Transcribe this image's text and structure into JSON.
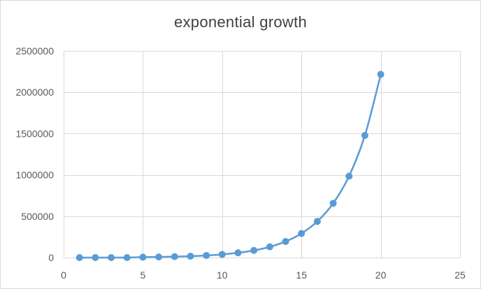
{
  "chart_data": {
    "type": "scatter",
    "title": "exponential growth",
    "xlabel": "",
    "ylabel": "",
    "xlim": [
      0,
      25
    ],
    "ylim": [
      0,
      2500000
    ],
    "x_ticks": [
      0,
      5,
      10,
      15,
      20,
      25
    ],
    "y_ticks": [
      0,
      500000,
      1000000,
      1500000,
      2000000,
      2500000
    ],
    "x_tick_labels": [
      "0",
      "5",
      "10",
      "15",
      "20",
      "25"
    ],
    "y_tick_labels": [
      "0",
      "500000",
      "1000000",
      "1500000",
      "2000000",
      "2500000"
    ],
    "grid": true,
    "legend": "none",
    "line_style": "smooth",
    "series_color": "#5b9bd5",
    "grid_color": "#d9d9d9",
    "series": [
      {
        "x": [
          1,
          2,
          3,
          4,
          5,
          6,
          7,
          8,
          9,
          10,
          11,
          12,
          13,
          14,
          15,
          16,
          17,
          18,
          19,
          20
        ],
        "values": [
          1,
          2,
          4,
          8,
          5000,
          7500,
          11400,
          17100,
          25600,
          38400,
          57700,
          86500,
          129700,
          194600,
          291900,
          437900,
          656800,
          985200,
          1477900,
          2216800
        ]
      }
    ]
  }
}
